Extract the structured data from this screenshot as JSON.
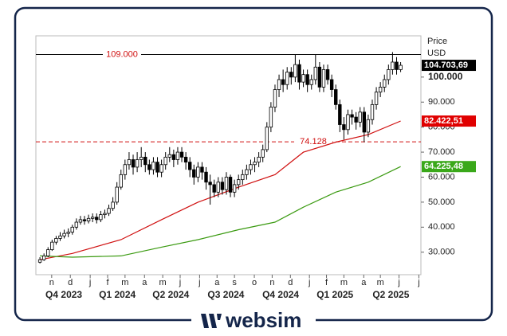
{
  "brand": "websim",
  "chart_data": {
    "type": "candlestick",
    "axis_title": "Price",
    "unit": "USD",
    "x": [
      0,
      1,
      2,
      3,
      4,
      5,
      6,
      7,
      8,
      9,
      10,
      11,
      12,
      13,
      14,
      15,
      16,
      17,
      18,
      19,
      20,
      21,
      22,
      23,
      24,
      25,
      26,
      27,
      28,
      29,
      30,
      31,
      32,
      33,
      34,
      35,
      36,
      37,
      38,
      39,
      40,
      41,
      42,
      43,
      44,
      45,
      46,
      47,
      48,
      49,
      50,
      51,
      52,
      53,
      54,
      55,
      56,
      57,
      58,
      59,
      60,
      61,
      62,
      63,
      64,
      65,
      66,
      67,
      68,
      69,
      70,
      71,
      72,
      73,
      74,
      75,
      76,
      77,
      78,
      79,
      80,
      81,
      82,
      83,
      84,
      85,
      86,
      87,
      88,
      89
    ],
    "open": [
      26000,
      27000,
      28500,
      31000,
      34000,
      35500,
      36500,
      37500,
      38000,
      40000,
      42000,
      43000,
      42500,
      43500,
      44000,
      43000,
      45000,
      45500,
      47500,
      50000,
      56000,
      61000,
      65000,
      67000,
      64000,
      67000,
      68000,
      65000,
      63000,
      66000,
      62000,
      65000,
      68000,
      69000,
      67000,
      70000,
      68000,
      66000,
      63000,
      60000,
      64000,
      62000,
      58000,
      57000,
      54000,
      58000,
      55000,
      60000,
      54000,
      57000,
      59000,
      61000,
      63000,
      65000,
      66000,
      68000,
      71000,
      80000,
      88000,
      95000,
      99000,
      97000,
      102000,
      100000,
      105000,
      98000,
      101000,
      97000,
      99000,
      104000,
      96000,
      103000,
      99000,
      95000,
      89000,
      81000,
      79000,
      85000,
      84000,
      82000,
      86000,
      78000,
      83000,
      89000,
      94000,
      96000,
      99000,
      103000,
      106000,
      103000
    ],
    "high": [
      28000,
      29500,
      32000,
      35000,
      36500,
      38000,
      39000,
      39500,
      41000,
      43500,
      44500,
      44500,
      45000,
      45500,
      45500,
      46500,
      47000,
      49000,
      52000,
      58000,
      63000,
      67000,
      70000,
      69000,
      70000,
      72000,
      70000,
      67000,
      68000,
      68000,
      67000,
      70000,
      72000,
      71000,
      72000,
      72000,
      70000,
      68000,
      65000,
      66000,
      66000,
      64000,
      61000,
      59000,
      60000,
      60000,
      62000,
      61000,
      59000,
      61000,
      63000,
      65000,
      67000,
      68000,
      70000,
      73000,
      82000,
      90000,
      97000,
      101000,
      103000,
      104000,
      104000,
      109000,
      107000,
      103000,
      103000,
      101000,
      109000,
      106000,
      105000,
      105000,
      101000,
      97000,
      91000,
      84000,
      87000,
      87000,
      86000,
      88000,
      88000,
      85000,
      91000,
      96000,
      98000,
      101000,
      105000,
      110000,
      108000,
      106000
    ],
    "low": [
      25500,
      26500,
      28000,
      30500,
      33000,
      34500,
      35500,
      36000,
      37000,
      39000,
      41000,
      41000,
      41500,
      42000,
      41500,
      42000,
      43500,
      44500,
      46500,
      49000,
      55000,
      59000,
      63000,
      61000,
      62000,
      64000,
      62000,
      61000,
      61000,
      60000,
      60000,
      63000,
      66000,
      64000,
      65000,
      66000,
      63000,
      60000,
      57000,
      58000,
      59000,
      55000,
      49000,
      52000,
      52000,
      53000,
      53000,
      52000,
      52000,
      55000,
      57000,
      59000,
      61000,
      62000,
      64000,
      66000,
      70000,
      78000,
      86000,
      92000,
      94000,
      95000,
      97000,
      98000,
      95000,
      96000,
      94000,
      95000,
      97000,
      94000,
      94000,
      97000,
      92000,
      87000,
      78000,
      75000,
      77000,
      81000,
      79000,
      80000,
      74000,
      76000,
      81000,
      87000,
      92000,
      94000,
      97000,
      101000,
      101000,
      102000
    ],
    "close": [
      27000,
      28500,
      31000,
      34000,
      35500,
      36500,
      37500,
      38000,
      40000,
      42000,
      43000,
      42500,
      43500,
      44000,
      43000,
      45000,
      45500,
      47500,
      50000,
      56000,
      61000,
      65000,
      67000,
      64000,
      67000,
      68000,
      65000,
      63000,
      66000,
      62000,
      65000,
      68000,
      69000,
      67000,
      70000,
      68000,
      66000,
      63000,
      60000,
      64000,
      62000,
      58000,
      57000,
      54000,
      58000,
      55000,
      60000,
      54000,
      57000,
      59000,
      61000,
      63000,
      65000,
      66000,
      68000,
      71000,
      80000,
      88000,
      95000,
      99000,
      97000,
      102000,
      100000,
      105000,
      98000,
      101000,
      97000,
      99000,
      104000,
      96000,
      103000,
      99000,
      95000,
      89000,
      81000,
      79000,
      85000,
      84000,
      82000,
      86000,
      78000,
      83000,
      89000,
      94000,
      96000,
      99000,
      103000,
      106000,
      103000,
      104703.69
    ],
    "up_color": "#ffffff",
    "down_color": "#000000",
    "xlim": [
      -1,
      94
    ],
    "xticks": [
      {
        "value": 2.9,
        "label": "n"
      },
      {
        "value": 7.5,
        "label": "d"
      },
      {
        "value": 12.4,
        "label": "j"
      },
      {
        "value": 16.7,
        "label": "f"
      },
      {
        "value": 21,
        "label": "m"
      },
      {
        "value": 25.8,
        "label": "a"
      },
      {
        "value": 30.3,
        "label": "m"
      },
      {
        "value": 34.6,
        "label": "j"
      },
      {
        "value": 39.4,
        "label": "j"
      },
      {
        "value": 43.7,
        "label": "a"
      },
      {
        "value": 48,
        "label": "s"
      },
      {
        "value": 52.9,
        "label": "o"
      },
      {
        "value": 57.3,
        "label": "n"
      },
      {
        "value": 61.8,
        "label": "d"
      },
      {
        "value": 66.5,
        "label": "j"
      },
      {
        "value": 70.7,
        "label": "f"
      },
      {
        "value": 75,
        "label": "m"
      },
      {
        "value": 79.9,
        "label": "a"
      },
      {
        "value": 84,
        "label": "m"
      },
      {
        "value": 88.6,
        "label": "j"
      },
      {
        "value": 93.5,
        "label": "j"
      }
    ],
    "quarters": [
      {
        "value": 5.9,
        "label": "Q4 2023"
      },
      {
        "value": 19.1,
        "label": "Q1 2024"
      },
      {
        "value": 32.3,
        "label": "Q2 2024"
      },
      {
        "value": 45.9,
        "label": "Q3 2024"
      },
      {
        "value": 59.4,
        "label": "Q4 2024"
      },
      {
        "value": 72.8,
        "label": "Q1 2025"
      },
      {
        "value": 86.6,
        "label": "Q2 2025"
      }
    ],
    "ylim": [
      21000,
      116500
    ],
    "yticks": [
      {
        "value": 30000,
        "label": "30.000"
      },
      {
        "value": 40000,
        "label": "40.000"
      },
      {
        "value": 50000,
        "label": "50.000"
      },
      {
        "value": 60000,
        "label": "60.000"
      },
      {
        "value": 70000,
        "label": "70.000"
      },
      {
        "value": 80000,
        "label": "80.000"
      },
      {
        "value": 90000,
        "label": "90.000"
      },
      {
        "value": 100000,
        "label": "100.000"
      }
    ],
    "hlines": [
      {
        "value": 109000,
        "label": "109.000",
        "color": "#000000",
        "style": "solid"
      },
      {
        "value": 74128,
        "label": "74.128",
        "color": "#d01010",
        "style": "dashed"
      }
    ],
    "moving_averages": [
      {
        "color": "#d01010",
        "x": [
          0,
          8,
          20,
          30,
          39,
          49,
          58,
          65,
          73,
          81,
          89
        ],
        "values": [
          27000,
          29500,
          35000,
          43000,
          50000,
          56000,
          61000,
          70000,
          74000,
          77000,
          82422.51
        ]
      },
      {
        "color": "#3a9a10",
        "x": [
          0,
          8,
          20,
          30,
          39,
          49,
          58,
          65,
          73,
          81,
          89
        ],
        "values": [
          28500,
          28000,
          28500,
          32000,
          35000,
          39000,
          42000,
          48000,
          54000,
          58000,
          64225.48
        ]
      }
    ],
    "last_values": [
      {
        "value": 104703.69,
        "label": "104.703,69",
        "color": "#000000"
      },
      {
        "value": 82422.51,
        "label": "82.422,51",
        "color": "#e00000"
      },
      {
        "value": 64225.48,
        "label": "64.225,48",
        "color": "#3aa81a"
      }
    ]
  }
}
